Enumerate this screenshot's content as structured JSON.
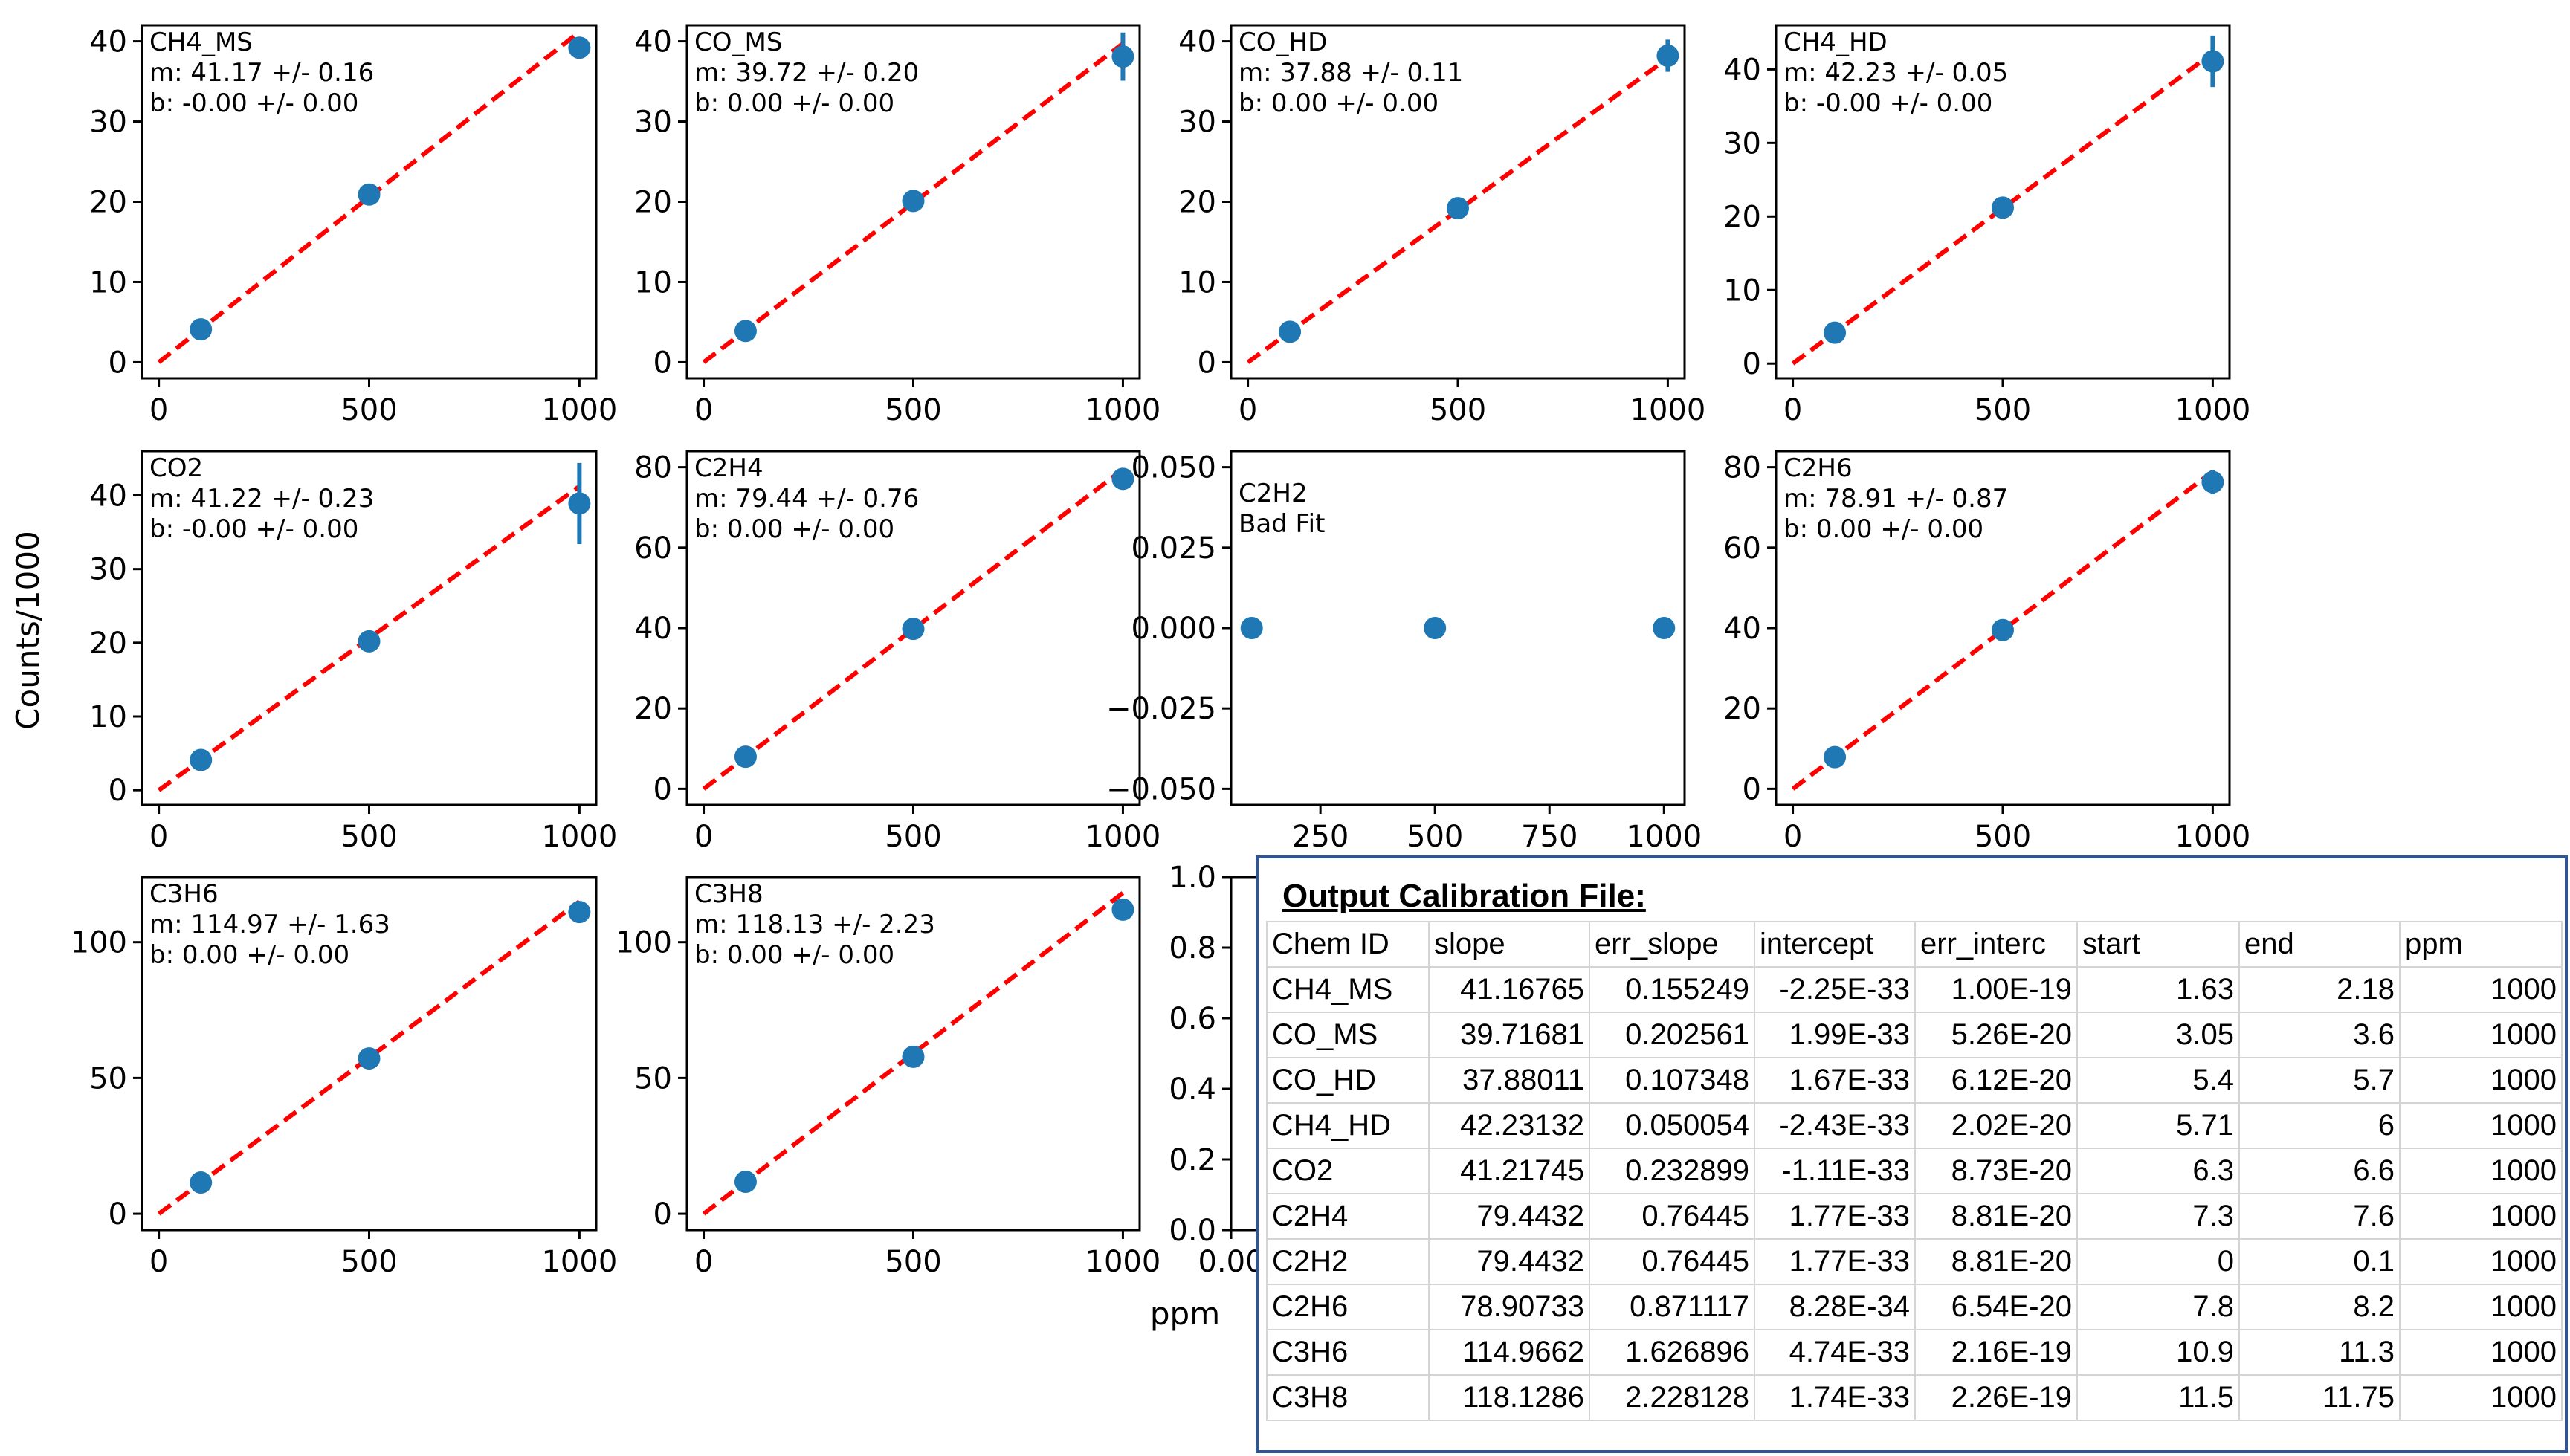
{
  "figure": {
    "ylabel": "Counts/1000",
    "xlabel": "ppm"
  },
  "chart_data": [
    {
      "type": "scatter",
      "name": "CH4_MS",
      "annotations": [
        "CH4_MS",
        "m: 41.17 +/- 0.16",
        "b: -0.00 +/- 0.00"
      ],
      "x": [
        100,
        500,
        1000
      ],
      "y": [
        4.1,
        20.9,
        39.2
      ],
      "yerr": [
        0.3,
        0.6,
        1.0
      ],
      "fit": {
        "m": 0.04117,
        "b": 0
      },
      "xlim": [
        -40,
        1040
      ],
      "ylim": [
        -2,
        42
      ],
      "xticks": [
        0,
        500,
        1000
      ],
      "yticks": [
        0,
        10,
        20,
        30,
        40
      ]
    },
    {
      "type": "scatter",
      "name": "CO_MS",
      "annotations": [
        "CO_MS",
        "m: 39.72 +/- 0.20",
        "b: 0.00 +/- 0.00"
      ],
      "x": [
        100,
        500,
        1000
      ],
      "y": [
        3.9,
        20.1,
        38.1
      ],
      "yerr": [
        0.3,
        0.5,
        3.0
      ],
      "fit": {
        "m": 0.03972,
        "b": 0
      },
      "xlim": [
        -40,
        1040
      ],
      "ylim": [
        -2,
        42
      ],
      "xticks": [
        0,
        500,
        1000
      ],
      "yticks": [
        0,
        10,
        20,
        30,
        40
      ]
    },
    {
      "type": "scatter",
      "name": "CO_HD",
      "annotations": [
        "CO_HD",
        "m: 37.88 +/- 0.11",
        "b: 0.00 +/- 0.00"
      ],
      "x": [
        100,
        500,
        1000
      ],
      "y": [
        3.8,
        19.2,
        38.2
      ],
      "yerr": [
        0.3,
        0.5,
        2.0
      ],
      "fit": {
        "m": 0.03788,
        "b": 0
      },
      "xlim": [
        -40,
        1040
      ],
      "ylim": [
        -2,
        42
      ],
      "xticks": [
        0,
        500,
        1000
      ],
      "yticks": [
        0,
        10,
        20,
        30,
        40
      ]
    },
    {
      "type": "scatter",
      "name": "CH4_HD",
      "annotations": [
        "CH4_HD",
        "m: 42.23 +/- 0.05",
        "b: -0.00 +/- 0.00"
      ],
      "x": [
        100,
        500,
        1000
      ],
      "y": [
        4.2,
        21.2,
        41.1
      ],
      "yerr": [
        0.3,
        0.5,
        3.5
      ],
      "fit": {
        "m": 0.04223,
        "b": 0
      },
      "xlim": [
        -40,
        1040
      ],
      "ylim": [
        -2,
        46
      ],
      "xticks": [
        0,
        500,
        1000
      ],
      "yticks": [
        0,
        10,
        20,
        30,
        40
      ]
    },
    {
      "type": "scatter",
      "name": "CO2",
      "annotations": [
        "CO2",
        "m: 41.22 +/- 0.23",
        "b: -0.00 +/- 0.00"
      ],
      "x": [
        100,
        500,
        1000
      ],
      "y": [
        4.1,
        20.2,
        38.9
      ],
      "yerr": [
        0.3,
        0.5,
        5.5
      ],
      "fit": {
        "m": 0.04122,
        "b": 0
      },
      "xlim": [
        -40,
        1040
      ],
      "ylim": [
        -2,
        46
      ],
      "xticks": [
        0,
        500,
        1000
      ],
      "yticks": [
        0,
        10,
        20,
        30,
        40
      ]
    },
    {
      "type": "scatter",
      "name": "C2H4",
      "annotations": [
        "C2H4",
        "m: 79.44 +/- 0.76",
        "b: 0.00 +/- 0.00"
      ],
      "x": [
        100,
        500,
        1000
      ],
      "y": [
        8.0,
        39.8,
        77.1
      ],
      "yerr": [
        0.4,
        0.8,
        1.5
      ],
      "fit": {
        "m": 0.07944,
        "b": 0
      },
      "xlim": [
        -40,
        1040
      ],
      "ylim": [
        -4,
        84
      ],
      "xticks": [
        0,
        500,
        1000
      ],
      "yticks": [
        0,
        20,
        40,
        60,
        80
      ]
    },
    {
      "type": "scatter",
      "name": "C2H2",
      "annotations": [
        "C2H2",
        "Bad Fit"
      ],
      "x": [
        100,
        500,
        1000
      ],
      "y": [
        0,
        0,
        0
      ],
      "yerr": [
        0,
        0,
        0
      ],
      "fit": null,
      "xlim": [
        55,
        1045
      ],
      "ylim": [
        -0.055,
        0.055
      ],
      "xticks": [
        250,
        500,
        750,
        1000
      ],
      "yticks": [
        -0.05,
        -0.025,
        0.0,
        0.025,
        0.05
      ],
      "ytick_labels": [
        "−0.050",
        "−0.025",
        "0.000",
        "0.025",
        "0.050"
      ]
    },
    {
      "type": "scatter",
      "name": "C2H6",
      "annotations": [
        "C2H6",
        "m: 78.91 +/- 0.87",
        "b: 0.00 +/- 0.00"
      ],
      "x": [
        100,
        500,
        1000
      ],
      "y": [
        7.9,
        39.5,
        76.3
      ],
      "yerr": [
        0.4,
        0.8,
        3.0
      ],
      "fit": {
        "m": 0.07891,
        "b": 0
      },
      "xlim": [
        -40,
        1040
      ],
      "ylim": [
        -4,
        84
      ],
      "xticks": [
        0,
        500,
        1000
      ],
      "yticks": [
        0,
        20,
        40,
        60,
        80
      ]
    },
    {
      "type": "scatter",
      "name": "C3H6",
      "annotations": [
        "C3H6",
        "m: 114.97 +/- 1.63",
        "b: 0.00 +/- 0.00"
      ],
      "x": [
        100,
        500,
        1000
      ],
      "y": [
        11.5,
        57.2,
        111.1
      ],
      "yerr": [
        0.5,
        1.0,
        2.0
      ],
      "fit": {
        "m": 0.11497,
        "b": 0
      },
      "xlim": [
        -40,
        1040
      ],
      "ylim": [
        -6,
        124
      ],
      "xticks": [
        0,
        500,
        1000
      ],
      "yticks": [
        0,
        50,
        100
      ]
    },
    {
      "type": "scatter",
      "name": "C3H8",
      "annotations": [
        "C3H8",
        "m: 118.13 +/- 2.23",
        "b: 0.00 +/- 0.00"
      ],
      "x": [
        100,
        500,
        1000
      ],
      "y": [
        11.8,
        57.8,
        112.0
      ],
      "yerr": [
        0.5,
        1.0,
        2.0
      ],
      "fit": {
        "m": 0.11813,
        "b": 0
      },
      "xlim": [
        -40,
        1040
      ],
      "ylim": [
        -6,
        124
      ],
      "xticks": [
        0,
        500,
        1000
      ],
      "yticks": [
        0,
        50,
        100
      ]
    },
    {
      "type": "scatter",
      "name": "empty-axes",
      "annotations": [],
      "x": [],
      "y": [],
      "yerr": [],
      "fit": null,
      "xlim": [
        0,
        1
      ],
      "ylim": [
        0,
        1
      ],
      "xticks": [
        0
      ],
      "xtick_labels": [
        "0.00"
      ],
      "yticks": [
        0,
        0.2,
        0.4,
        0.6,
        0.8,
        1.0
      ],
      "ytick_labels": [
        "0.0",
        "0.2",
        "0.4",
        "0.6",
        "0.8",
        "1.0"
      ]
    }
  ],
  "calibration": {
    "title": "Output Calibration File:",
    "headers": [
      "Chem ID",
      "slope",
      "err_slope",
      "intercept",
      "err_interc",
      "start",
      "end",
      "ppm"
    ],
    "rows": [
      [
        "CH4_MS",
        "41.16765",
        "0.155249",
        "-2.25E-33",
        "1.00E-19",
        "1.63",
        "2.18",
        "1000"
      ],
      [
        "CO_MS",
        "39.71681",
        "0.202561",
        "1.99E-33",
        "5.26E-20",
        "3.05",
        "3.6",
        "1000"
      ],
      [
        "CO_HD",
        "37.88011",
        "0.107348",
        "1.67E-33",
        "6.12E-20",
        "5.4",
        "5.7",
        "1000"
      ],
      [
        "CH4_HD",
        "42.23132",
        "0.050054",
        "-2.43E-33",
        "2.02E-20",
        "5.71",
        "6",
        "1000"
      ],
      [
        "CO2",
        "41.21745",
        "0.232899",
        "-1.11E-33",
        "8.73E-20",
        "6.3",
        "6.6",
        "1000"
      ],
      [
        "C2H4",
        "79.4432",
        "0.76445",
        "1.77E-33",
        "8.81E-20",
        "7.3",
        "7.6",
        "1000"
      ],
      [
        "C2H2",
        "79.4432",
        "0.76445",
        "1.77E-33",
        "8.81E-20",
        "0",
        "0.1",
        "1000"
      ],
      [
        "C2H6",
        "78.90733",
        "0.871117",
        "8.28E-34",
        "6.54E-20",
        "7.8",
        "8.2",
        "1000"
      ],
      [
        "C3H6",
        "114.9662",
        "1.626896",
        "4.74E-33",
        "2.16E-19",
        "10.9",
        "11.3",
        "1000"
      ],
      [
        "C3H8",
        "118.1286",
        "2.228128",
        "1.74E-33",
        "2.26E-19",
        "11.5",
        "11.75",
        "1000"
      ]
    ]
  }
}
